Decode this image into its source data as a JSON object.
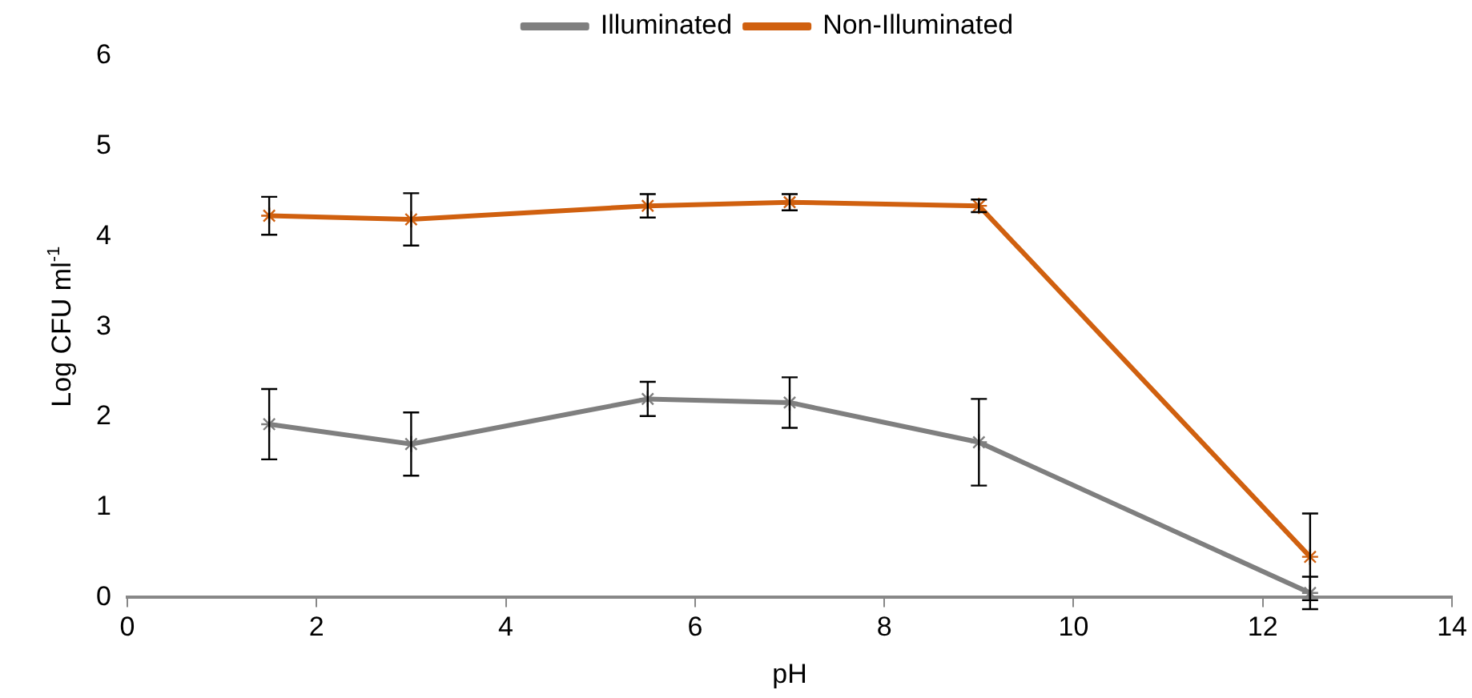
{
  "chart_data": {
    "type": "line",
    "xlabel": "pH",
    "ylabel": "Log CFU ml$^{-1}$",
    "x": [
      1.5,
      3,
      5.5,
      7,
      9,
      12.5
    ],
    "series": [
      {
        "name": "Illuminated",
        "color": "#7f7f7f",
        "values": [
          1.92,
          1.7,
          2.2,
          2.16,
          1.72,
          0.05
        ],
        "errors": [
          0.39,
          0.35,
          0.19,
          0.28,
          0.48,
          0.18
        ]
      },
      {
        "name": "Non-Illuminated",
        "color": "#d0600f",
        "values": [
          4.23,
          4.19,
          4.34,
          4.38,
          4.34,
          0.45
        ],
        "errors": [
          0.21,
          0.29,
          0.13,
          0.09,
          0.07,
          0.48
        ]
      }
    ],
    "xlim": [
      0,
      14
    ],
    "xticks": [
      0,
      2,
      4,
      6,
      8,
      10,
      12,
      14
    ],
    "ylim": [
      0,
      6
    ],
    "yticks": [
      0,
      1,
      2,
      3,
      4,
      5,
      6
    ],
    "grid": false,
    "legend": "top",
    "marker": "cross",
    "line_style": "solid"
  }
}
